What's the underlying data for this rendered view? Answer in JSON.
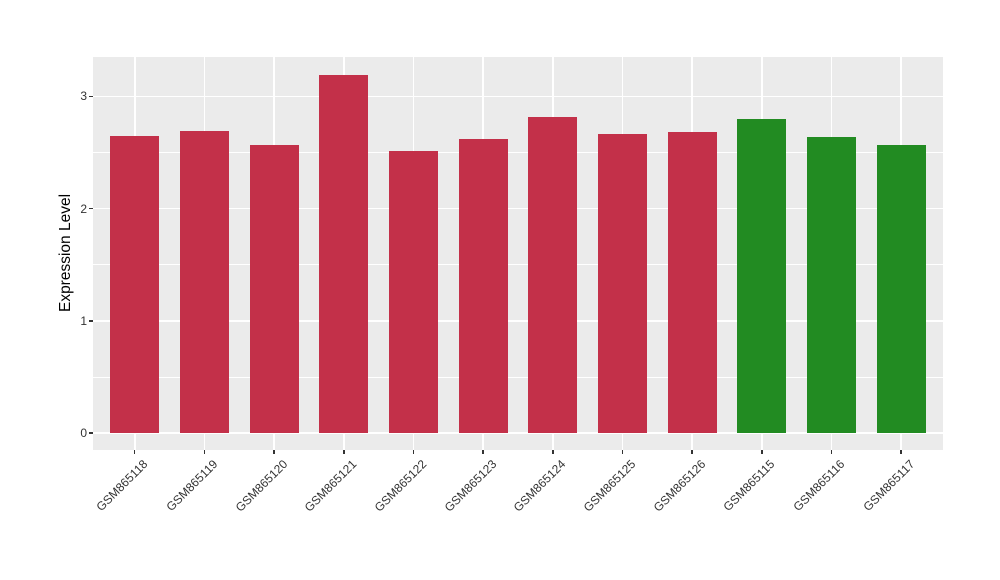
{
  "figure": {
    "background": "#FFFFFF",
    "panel_background": "#EBEBEB",
    "grid_color": "#FFFFFF",
    "axis_tick_color": "#333333",
    "axis_text_color": "#333333",
    "axis_title_color": "#000000"
  },
  "chart_data": {
    "type": "bar",
    "title": "",
    "xlabel": "",
    "ylabel": "Expression Level",
    "categories": [
      "GSM865118",
      "GSM865119",
      "GSM865120",
      "GSM865121",
      "GSM865122",
      "GSM865123",
      "GSM865124",
      "GSM865125",
      "GSM865126",
      "GSM865115",
      "GSM865116",
      "GSM865117"
    ],
    "values": [
      2.65,
      2.69,
      2.57,
      3.19,
      2.51,
      2.62,
      2.82,
      2.66,
      2.68,
      2.8,
      2.64,
      2.57
    ],
    "bar_colors": [
      "#C33049",
      "#C33049",
      "#C33049",
      "#C33049",
      "#C33049",
      "#C33049",
      "#C33049",
      "#C33049",
      "#C33049",
      "#228B22",
      "#228B22",
      "#228B22"
    ],
    "groups": [
      {
        "name": "group-red",
        "color": "#C33049",
        "categories": [
          "GSM865118",
          "GSM865119",
          "GSM865120",
          "GSM865121",
          "GSM865122",
          "GSM865123",
          "GSM865124",
          "GSM865125",
          "GSM865126"
        ]
      },
      {
        "name": "group-green",
        "color": "#228B22",
        "categories": [
          "GSM865115",
          "GSM865116",
          "GSM865117"
        ]
      }
    ],
    "ylim": [
      -0.15,
      3.35
    ],
    "yticks": [
      0,
      1,
      2,
      3
    ],
    "ytick_labels": [
      "0",
      "1",
      "2",
      "3"
    ],
    "minor_yticks": [
      0.5,
      1.5,
      2.5
    ],
    "grid": true,
    "legend": "none",
    "bar_width_fraction": 0.7,
    "x_tick_rotation_deg": 45
  }
}
